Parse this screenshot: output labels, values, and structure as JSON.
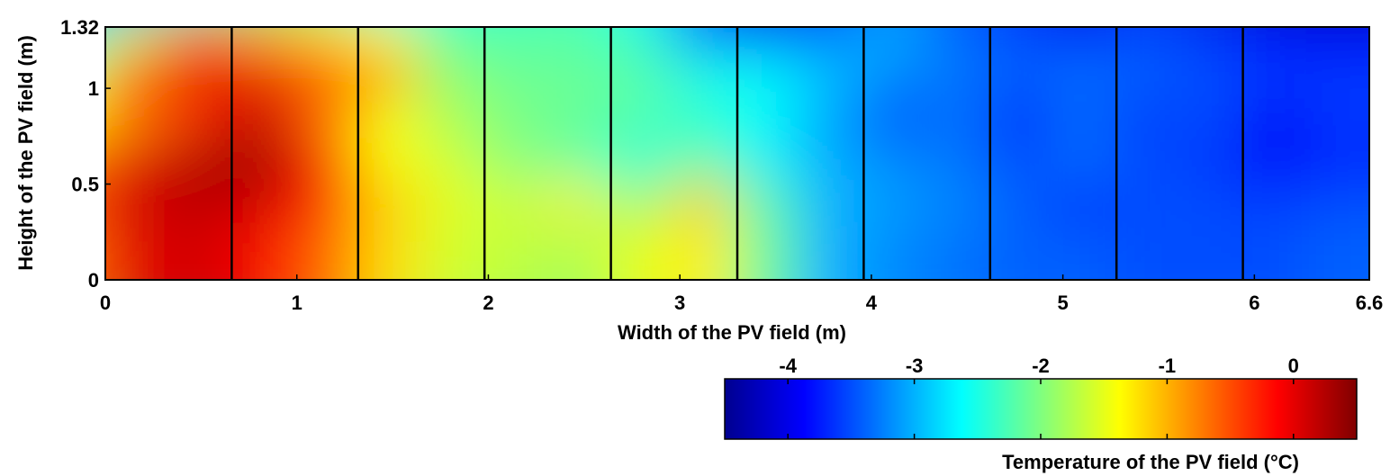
{
  "chart_data": {
    "type": "heatmap",
    "xlabel": "Width of the PV field (m)",
    "ylabel": "Height of the PV field (m)",
    "xlim": [
      0,
      6.6
    ],
    "ylim": [
      0,
      1.32
    ],
    "x_ticks": [
      0,
      1,
      2,
      3,
      4,
      5,
      6,
      6.6
    ],
    "x_tick_labels": [
      "0",
      "1",
      "2",
      "3",
      "4",
      "5",
      "6",
      "6.6"
    ],
    "y_ticks": [
      0,
      0.5,
      1,
      1.32
    ],
    "y_tick_labels": [
      "0",
      "0.5",
      "1",
      "1.32"
    ],
    "module_boundaries": [
      0.66,
      1.32,
      1.98,
      2.64,
      3.3,
      3.96,
      4.62,
      5.28,
      5.94
    ],
    "colorbar": {
      "label": "Temperature of the PV field (°C)",
      "range": [
        -4.5,
        0.5
      ],
      "ticks": [
        -4,
        -3,
        -2,
        -1,
        0
      ],
      "tick_labels": [
        "-4",
        "-3",
        "-2",
        "-1",
        "0"
      ],
      "colormap": "jet"
    },
    "grid_x": [
      0.0,
      0.33,
      0.66,
      0.99,
      1.32,
      1.65,
      1.98,
      2.31,
      2.64,
      2.97,
      3.3,
      3.63,
      3.96,
      4.29,
      4.62,
      4.95,
      5.28,
      5.61,
      5.94,
      6.27,
      6.6
    ],
    "grid_y": [
      1.32,
      1.1,
      0.88,
      0.66,
      0.44,
      0.22,
      0.0
    ],
    "values": [
      [
        -3.0,
        -3.1,
        -2.4,
        -2.1,
        -2.0,
        -2.7,
        -2.5,
        -2.4,
        -2.3,
        -2.6,
        -3.6,
        -4.1,
        -3.9,
        -3.3,
        -3.6,
        -3.9,
        -4.1,
        -3.9,
        -4.1,
        -4.3,
        -4.4
      ],
      [
        -2.5,
        -1.6,
        -0.6,
        -0.9,
        -1.2,
        -1.4,
        -2.2,
        -2.2,
        -2.2,
        -2.4,
        -3.2,
        -3.4,
        -3.3,
        -3.0,
        -3.3,
        -3.5,
        -3.7,
        -3.5,
        -3.6,
        -3.8,
        -3.9
      ],
      [
        -1.6,
        -0.4,
        0.0,
        0.0,
        -0.4,
        -0.9,
        -1.9,
        -2.1,
        -2.1,
        -2.2,
        -2.5,
        -2.6,
        -2.9,
        -3.2,
        -3.3,
        -3.4,
        -3.3,
        -3.4,
        -3.5,
        -3.6,
        -3.6
      ],
      [
        -1.3,
        -0.8,
        -0.4,
        0.1,
        -0.7,
        -1.4,
        -1.8,
        -2.0,
        -2.1,
        -2.2,
        -2.4,
        -2.6,
        -3.1,
        -3.5,
        -3.3,
        -3.7,
        -3.4,
        -3.6,
        -3.5,
        -3.9,
        -3.6
      ],
      [
        -0.7,
        0.0,
        0.3,
        0.4,
        -0.2,
        -1.4,
        -1.6,
        -2.0,
        -2.2,
        -2.5,
        -2.2,
        -2.7,
        -3.0,
        -3.2,
        -3.3,
        -3.5,
        -3.3,
        -3.5,
        -3.6,
        -3.9,
        -3.7
      ],
      [
        -0.5,
        0.1,
        0.2,
        0.1,
        -0.3,
        -1.1,
        -1.5,
        -1.6,
        -1.3,
        -1.9,
        -1.1,
        -2.2,
        -3.0,
        -3.1,
        -3.2,
        -3.4,
        -3.7,
        -3.5,
        -3.5,
        -3.6,
        -3.5
      ],
      [
        -0.7,
        0.0,
        0.1,
        -0.1,
        -0.6,
        -1.2,
        -1.6,
        -1.7,
        -1.8,
        -1.5,
        -1.3,
        -2.1,
        -3.0,
        -3.2,
        -3.3,
        -3.4,
        -3.4,
        -3.5,
        -3.5,
        -3.5,
        -3.4
      ]
    ]
  }
}
